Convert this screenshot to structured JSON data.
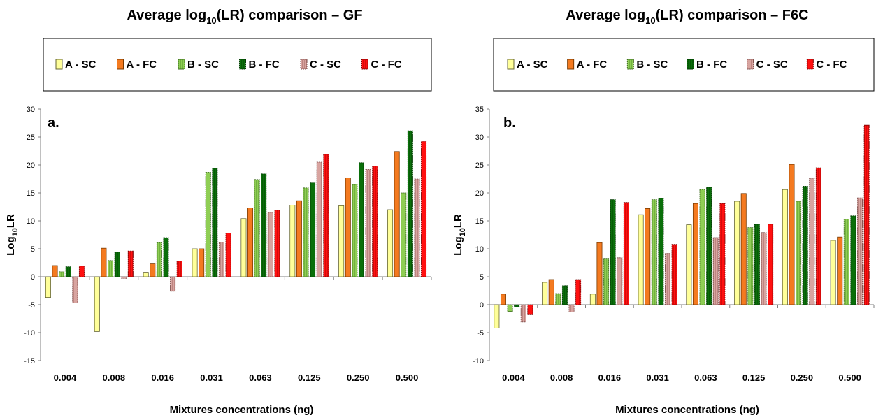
{
  "chart_data": [
    {
      "type": "bar",
      "title_prefix": "Average log",
      "title_sub": "10",
      "title_suffix": "(LR)  comparison – GF",
      "panel_label": "a.",
      "xlabel": "Mixtures concentrations (ng)",
      "ylabel_main": "Log",
      "ylabel_sub": "10",
      "ylabel_end": "LR",
      "ylim": [
        -15,
        30
      ],
      "yticks": [
        -15,
        -10,
        -5,
        0,
        5,
        10,
        15,
        20,
        25,
        30
      ],
      "categories": [
        "0.004",
        "0.008",
        "0.016",
        "0.031",
        "0.063",
        "0.125",
        "0.250",
        "0.500"
      ],
      "series": [
        {
          "name": "A - SC",
          "values": [
            -3.7,
            -9.8,
            0.8,
            5.0,
            10.4,
            12.8,
            12.7,
            12.0
          ]
        },
        {
          "name": "A - FC",
          "values": [
            2.0,
            5.1,
            2.3,
            5.0,
            12.3,
            13.6,
            17.7,
            22.4
          ]
        },
        {
          "name": "B - SC",
          "values": [
            0.9,
            2.9,
            6.1,
            18.7,
            17.4,
            15.9,
            16.5,
            15.0
          ]
        },
        {
          "name": "B - FC",
          "values": [
            1.8,
            4.4,
            7.0,
            19.4,
            18.4,
            16.8,
            20.4,
            26.1
          ]
        },
        {
          "name": "C - SC",
          "values": [
            -4.7,
            -0.3,
            -2.6,
            6.2,
            11.5,
            20.5,
            19.2,
            17.5
          ]
        },
        {
          "name": "C - FC",
          "values": [
            1.9,
            4.6,
            2.8,
            7.8,
            11.9,
            21.9,
            19.8,
            24.2
          ]
        }
      ]
    },
    {
      "type": "bar",
      "title_prefix": "Average log",
      "title_sub": "10",
      "title_suffix": "(LR)  comparison – F6C",
      "panel_label": "b.",
      "xlabel": "Mixtures concentrations (ng)",
      "ylabel_main": "Log",
      "ylabel_sub": "10",
      "ylabel_end": "LR",
      "ylim": [
        -10,
        35
      ],
      "yticks": [
        -10,
        -5,
        0,
        5,
        10,
        15,
        20,
        25,
        30,
        35
      ],
      "categories": [
        "0.004",
        "0.008",
        "0.016",
        "0.031",
        "0.063",
        "0.125",
        "0.250",
        "0.500"
      ],
      "series": [
        {
          "name": "A - SC",
          "values": [
            -4.2,
            4.0,
            1.9,
            16.1,
            14.3,
            18.5,
            20.6,
            11.5
          ]
        },
        {
          "name": "A - FC",
          "values": [
            1.9,
            4.5,
            11.1,
            17.2,
            18.1,
            19.9,
            25.1,
            12.1
          ]
        },
        {
          "name": "B - SC",
          "values": [
            -1.2,
            2.0,
            8.3,
            18.8,
            20.6,
            13.8,
            18.5,
            15.3
          ]
        },
        {
          "name": "B - FC",
          "values": [
            -0.4,
            3.4,
            18.8,
            19.0,
            21.0,
            14.4,
            21.2,
            15.9
          ]
        },
        {
          "name": "C - SC",
          "values": [
            -3.1,
            -1.3,
            8.4,
            9.2,
            12.0,
            12.9,
            22.6,
            19.1
          ]
        },
        {
          "name": "C - FC",
          "values": [
            -1.8,
            4.5,
            18.3,
            10.8,
            18.1,
            14.4,
            24.5,
            32.1
          ]
        }
      ]
    }
  ],
  "colors": {
    "A - SC": "#ffff99",
    "A - FC": "#f47a20",
    "B - SC": "#8fce54",
    "B - FC": "#0a6f0a",
    "C - SC": "#d8a4a0",
    "C - FC": "#ff1010"
  }
}
